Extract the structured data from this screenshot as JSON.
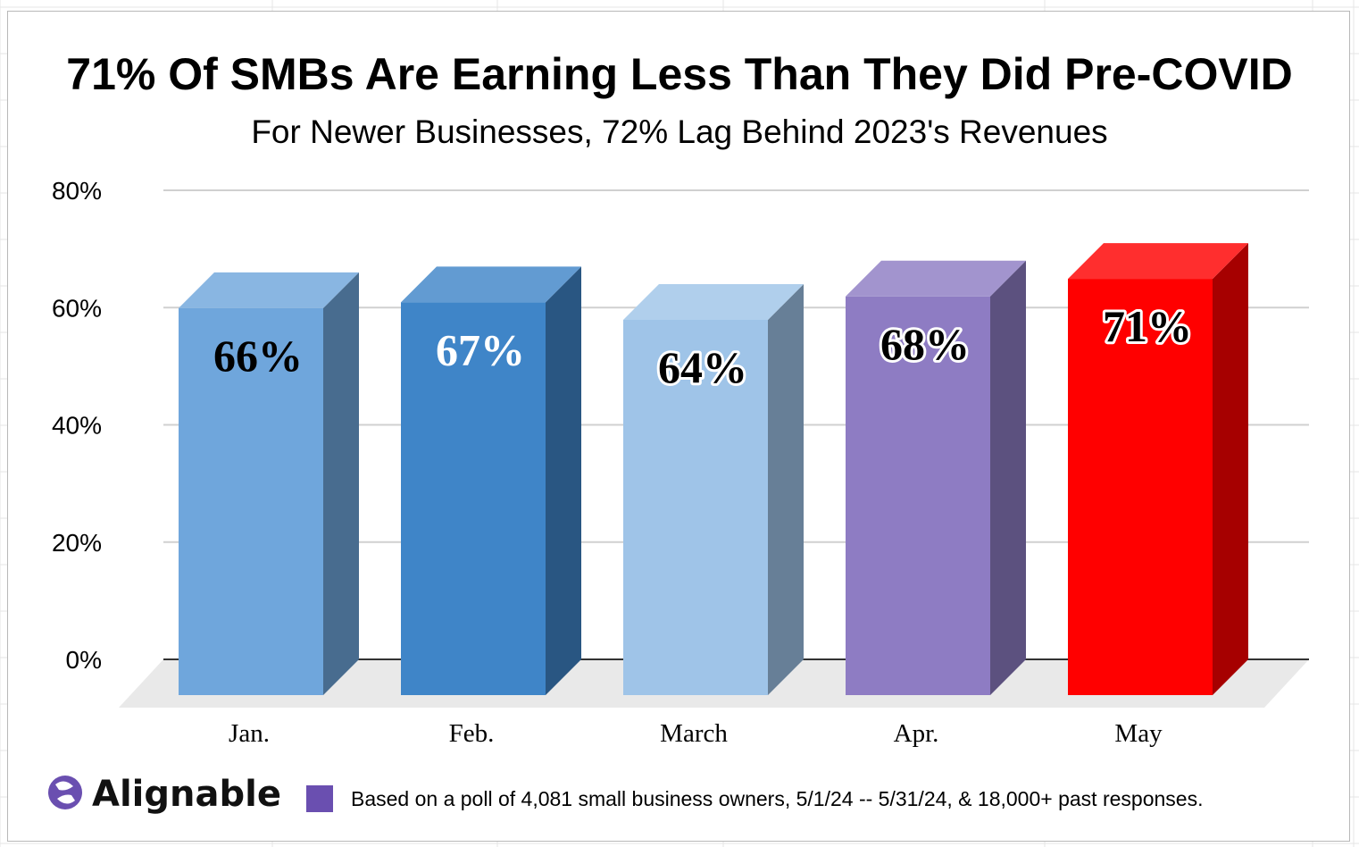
{
  "chart_data": {
    "type": "bar",
    "title": "71% Of SMBs Are Earning Less Than They Did Pre-COVID",
    "subtitle": "For Newer Businesses, 72% Lag Behind 2023's Revenues",
    "categories": [
      "Jan.",
      "Feb.",
      "March",
      "Apr.",
      "May"
    ],
    "values": [
      66,
      67,
      64,
      68,
      71
    ],
    "data_labels": [
      "66%",
      "67%",
      "64%",
      "68%",
      "71%"
    ],
    "bar_colors": [
      "#6fa6dc",
      "#3f85c8",
      "#9fc4e8",
      "#8e7cc3",
      "#ff0000"
    ],
    "ylim": [
      0,
      80
    ],
    "yticks": [
      "0%",
      "20%",
      "40%",
      "60%",
      "80%"
    ],
    "grid": true,
    "style": "3d-columns"
  },
  "footer": {
    "logo_text": "Alignable",
    "logo_icon": "alignable-logo-icon",
    "legend_swatch_color": "#6a4fb0",
    "note": "Based on a poll of 4,081 small business owners, 5/1/24 -- 5/31/24, & 18,000+ past responses."
  }
}
